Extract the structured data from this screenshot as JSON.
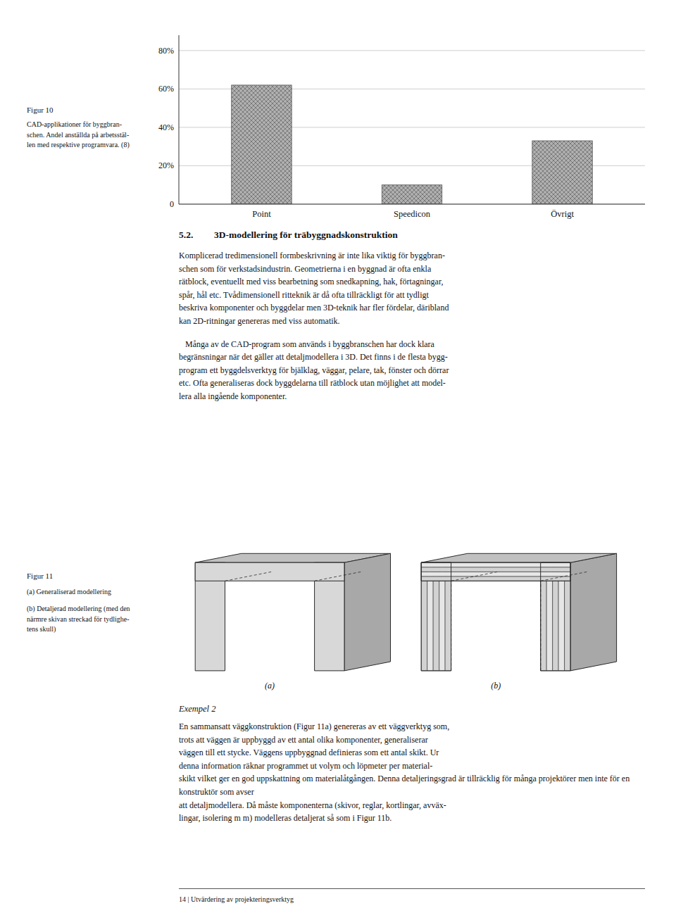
{
  "chart_data": {
    "type": "bar",
    "title": "Figur 10",
    "subtitle": "CAD-applikationer för byggbran-\nschen. Andel anställda på arbetsstäl-\nlen med respektive programvara. (8)",
    "categories": [
      "Point",
      "Speedicon",
      "Övrigt"
    ],
    "values": [
      0.62,
      0.1,
      0.33
    ],
    "color": "#b0b0b0",
    "ylim": [
      0,
      0.88
    ],
    "yticks": [
      0,
      {
        "value": 0.2,
        "label": "20%"
      },
      {
        "value": 0.4,
        "label": "40%"
      },
      {
        "value": 0.6,
        "label": "60%"
      },
      {
        "value": 0.8,
        "label": "80%"
      }
    ],
    "grid": true,
    "annotations": [
      "5.2.",
      "3D-modellering för träbyggnadskonstruktion",
      "Komplicerad tredimensionell formbeskrivning är inte lika viktig för byggbran-",
      "schen som för verkstadsindustrin. Geometrierna i en byggnad är ofta enkla",
      "rätblock, eventuellt med viss bearbetning som snedkapning, hak, förtagningar,",
      "spår, hål etc. Tvådimensionell ritteknik är då ofta tillräckligt för att tydligt",
      "beskriva komponenter och byggdelar men 3D-teknik har fler fördelar, däribland",
      "kan 2D-ritningar genereras med viss automatik.",
      "   Många av de CAD-program som används i byggbranschen har dock klara",
      "begränsningar när det gäller att detaljmodellera i 3D. Det finns i de flesta bygg-",
      "program ett byggdelsverktyg för bjälklag, väggar, pelare, tak, fönster och dörrar",
      "etc. Ofta generaliseras dock byggdelarna till rätblock utan möjlighet att model-",
      "lera alla ingående komponenter.",
      "Figur 11",
      "(a) Generaliserad modellering",
      "(b) Detaljerad modellering (med den\nnärmre skivan streckad för tydlighe-\ntens skull)",
      "(a)",
      "(b)",
      "Exempel 2",
      "En sammansatt väggkonstruktion (Figur 11a) genereras av ett väggverktyg som,",
      "trots att väggen är uppbyggd av ett antal olika komponenter, generaliserar",
      "väggen till ett stycke. Väggens uppbyggnad definieras som ett antal skikt. Ur",
      "denna information räknar programmet ut volym och löpmeter per material-",
      "skikt vilket ger en god uppskattning om materialåtgången. Denna detaljeringsgrad är tillräcklig för många projektörer men inte för en konstruktör som avser",
      "att detaljmodellera. Då måste komponenterna (skivor, reglar, kortlingar, avväx-",
      "lingar, isolering m m) modelleras detaljerat så som i Figur 11b.",
      "14  |  Utvärdering av projekteringsverktyg"
    ]
  }
}
